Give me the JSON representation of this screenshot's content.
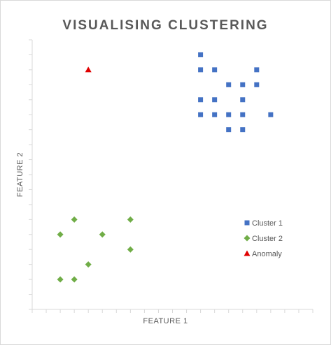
{
  "chart_data": {
    "type": "scatter",
    "title": "VISUALISING CLUSTERING",
    "xlabel": "FEATURE 1",
    "ylabel": "FEATURE 2",
    "xlim": [
      0,
      20
    ],
    "ylim": [
      0,
      18
    ],
    "x_tick_step": 1,
    "y_tick_step": 1,
    "grid": false,
    "legend_position": "right",
    "series": [
      {
        "name": "Cluster 1",
        "marker": "square",
        "color": "#4472c4",
        "points": [
          [
            12,
            17
          ],
          [
            12,
            16
          ],
          [
            13,
            16
          ],
          [
            16,
            16
          ],
          [
            14,
            15
          ],
          [
            15,
            15
          ],
          [
            16,
            15
          ],
          [
            12,
            14
          ],
          [
            13,
            14
          ],
          [
            15,
            14
          ],
          [
            12,
            13
          ],
          [
            13,
            13
          ],
          [
            14,
            13
          ],
          [
            15,
            13
          ],
          [
            17,
            13
          ],
          [
            14,
            12
          ],
          [
            15,
            12
          ]
        ]
      },
      {
        "name": "Cluster 2",
        "marker": "diamond",
        "color": "#70ad47",
        "points": [
          [
            3,
            6
          ],
          [
            7,
            6
          ],
          [
            2,
            5
          ],
          [
            5,
            5
          ],
          [
            7,
            4
          ],
          [
            4,
            3
          ],
          [
            2,
            2
          ],
          [
            3,
            2
          ]
        ]
      },
      {
        "name": "Anomaly",
        "marker": "triangle",
        "color": "#e00000",
        "points": [
          [
            4,
            16
          ]
        ]
      }
    ]
  }
}
